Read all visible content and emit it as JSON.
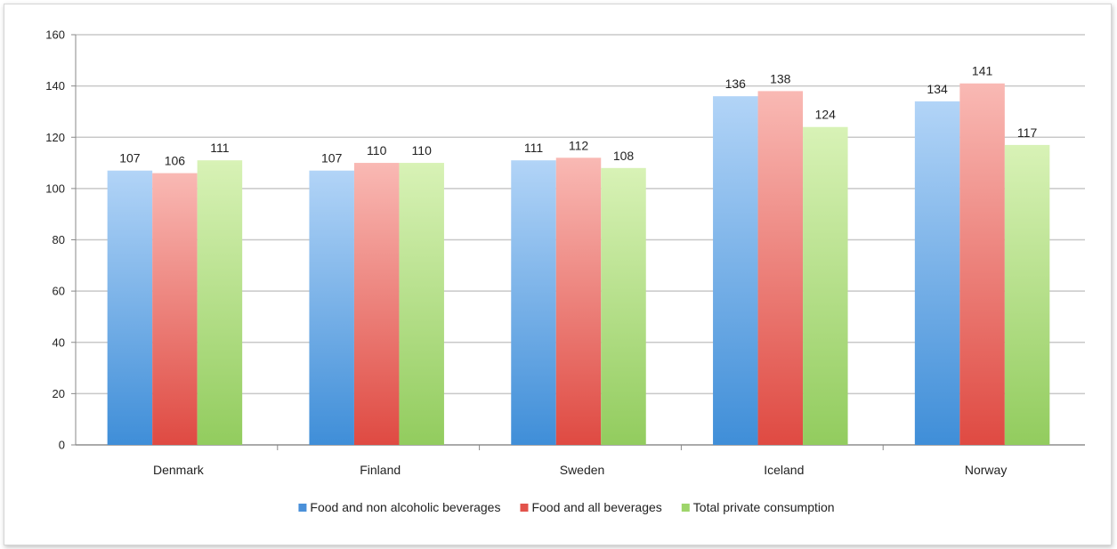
{
  "chart_data": {
    "type": "bar",
    "categories": [
      "Denmark",
      "Finland",
      "Sweden",
      "Iceland",
      "Norway"
    ],
    "series": [
      {
        "name": "Food and non alcoholic beverages",
        "values": [
          107,
          107,
          111,
          136,
          134
        ],
        "color_top": "#b2d4f7",
        "color_bottom": "#3f8ed8",
        "legend_color": "#4a90d9"
      },
      {
        "name": "Food and all beverages",
        "values": [
          106,
          110,
          112,
          138,
          141
        ],
        "color_top": "#f9b9b4",
        "color_bottom": "#df4a42",
        "legend_color": "#e2534b"
      },
      {
        "name": "Total private consumption",
        "values": [
          111,
          110,
          108,
          124,
          117
        ],
        "color_top": "#d8f2b6",
        "color_bottom": "#92cc5e",
        "legend_color": "#9ed56a"
      }
    ],
    "ylim": [
      0,
      160
    ],
    "yticks": [
      0,
      20,
      40,
      60,
      80,
      100,
      120,
      140,
      160
    ],
    "grid": true,
    "legend_position": "bottom",
    "title": "",
    "xlabel": "",
    "ylabel": ""
  }
}
